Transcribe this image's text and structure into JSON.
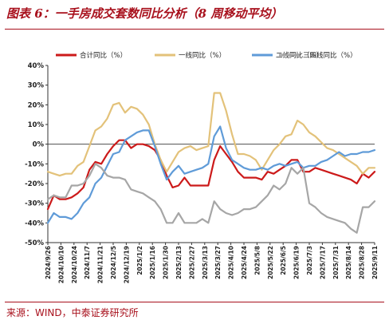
{
  "header": {
    "title": "图表 6：一手房成交套数同比分析（8 周移动平均）"
  },
  "footer": {
    "source": "来源：WIND，中泰证券研究所"
  },
  "chart_data": {
    "type": "line",
    "ylim": [
      -50,
      40
    ],
    "yticks": [
      "40%",
      "30%",
      "20%",
      "10%",
      "0%",
      "-10%",
      "-20%",
      "-30%",
      "-40%",
      "-50%"
    ],
    "ytick_values": [
      40,
      30,
      20,
      10,
      0,
      -10,
      -20,
      -30,
      -40,
      -50
    ],
    "xtick_labels": [
      "2024/9/26",
      "2024/10/10",
      "2024/10/24",
      "2024/11/7",
      "2024/11/21",
      "2024/12/5",
      "2024/12/19",
      "2025/1/2",
      "2025/1/16",
      "2025/1/30",
      "2025/2/13",
      "2025/2/27",
      "2025/3/13",
      "2025/3/27",
      "2025/4/10",
      "2025/4/24",
      "2025/5/8",
      "2025/5/22",
      "2025/6/5",
      "2025/6/19",
      "2025/7/3",
      "2025/7/17",
      "2025/7/31",
      "2025/8/14",
      "2025/8/28",
      "2025/9/11"
    ],
    "grid": false,
    "legend_position": "top",
    "series": [
      {
        "name": "合计同比（%）",
        "color": "#cc1a1a",
        "values": [
          -33,
          -26,
          -28,
          -28,
          -27,
          -25,
          -22,
          -13,
          -9,
          -10,
          -5,
          -1,
          2,
          2,
          -2,
          0,
          0,
          -1,
          -3,
          -8,
          -16,
          -22,
          -21,
          -17,
          -21,
          -21,
          -21,
          -21,
          -8,
          -1,
          -5,
          -9,
          -14,
          -17,
          -17,
          -17,
          -18,
          -14,
          -15,
          -13,
          -11,
          -8,
          -8,
          -14,
          -14,
          -12,
          -13,
          -14,
          -15,
          -16,
          -17,
          -18,
          -20,
          -15,
          -17,
          -14
        ]
      },
      {
        "name": "一线同比（%）",
        "color": "#e3c27a",
        "values": [
          -14,
          -15,
          -16,
          -15,
          -15,
          -11,
          -9,
          -1,
          7,
          9,
          13,
          20,
          21,
          16,
          19,
          18,
          15,
          10,
          0,
          -8,
          -14,
          -9,
          -4,
          -2,
          -1,
          -3,
          -2,
          -1,
          26,
          26,
          17,
          5,
          -5,
          -5,
          -6,
          -8,
          -13,
          -8,
          -3,
          0,
          4,
          5,
          12,
          10,
          6,
          4,
          1,
          -2,
          -3,
          -5,
          -7,
          -9,
          -11,
          -15,
          -12,
          -12
        ]
      },
      {
        "name": "二线同比（%）",
        "color": "#5f9bd8",
        "values": [
          -40,
          -35,
          -37,
          -37,
          -38,
          -35,
          -30,
          -27,
          -20,
          -17,
          -11,
          -5,
          -4,
          2,
          4,
          6,
          7,
          7,
          -1,
          -10,
          -18,
          -14,
          -11,
          -15,
          -14,
          -13,
          -12,
          -10,
          4,
          9,
          -2,
          -8,
          -10,
          -12,
          -13,
          -13,
          -12,
          -13,
          -11,
          -10,
          -11,
          -10,
          -9,
          -12,
          -11,
          -11,
          -9,
          -8,
          -6,
          -4,
          -6,
          -5,
          -5,
          -4,
          -4,
          -3
        ]
      },
      {
        "name": "三四线同比（%）",
        "color": "#a6a6a6",
        "values": [
          -28,
          -26,
          -27,
          -27,
          -21,
          -21,
          -20,
          -16,
          -10,
          -12,
          -16,
          -17,
          -17,
          -18,
          -23,
          -24,
          -25,
          -27,
          -29,
          -33,
          -40,
          -40,
          -35,
          -40,
          -40,
          -40,
          -38,
          -40,
          -29,
          -33,
          -35,
          -36,
          -35,
          -33,
          -33,
          -32,
          -29,
          -26,
          -21,
          -23,
          -20,
          -12,
          -15,
          -12,
          -30,
          -32,
          -35,
          -37,
          -38,
          -39,
          -40,
          -43,
          -45,
          -32,
          -32,
          -29
        ]
      }
    ]
  }
}
